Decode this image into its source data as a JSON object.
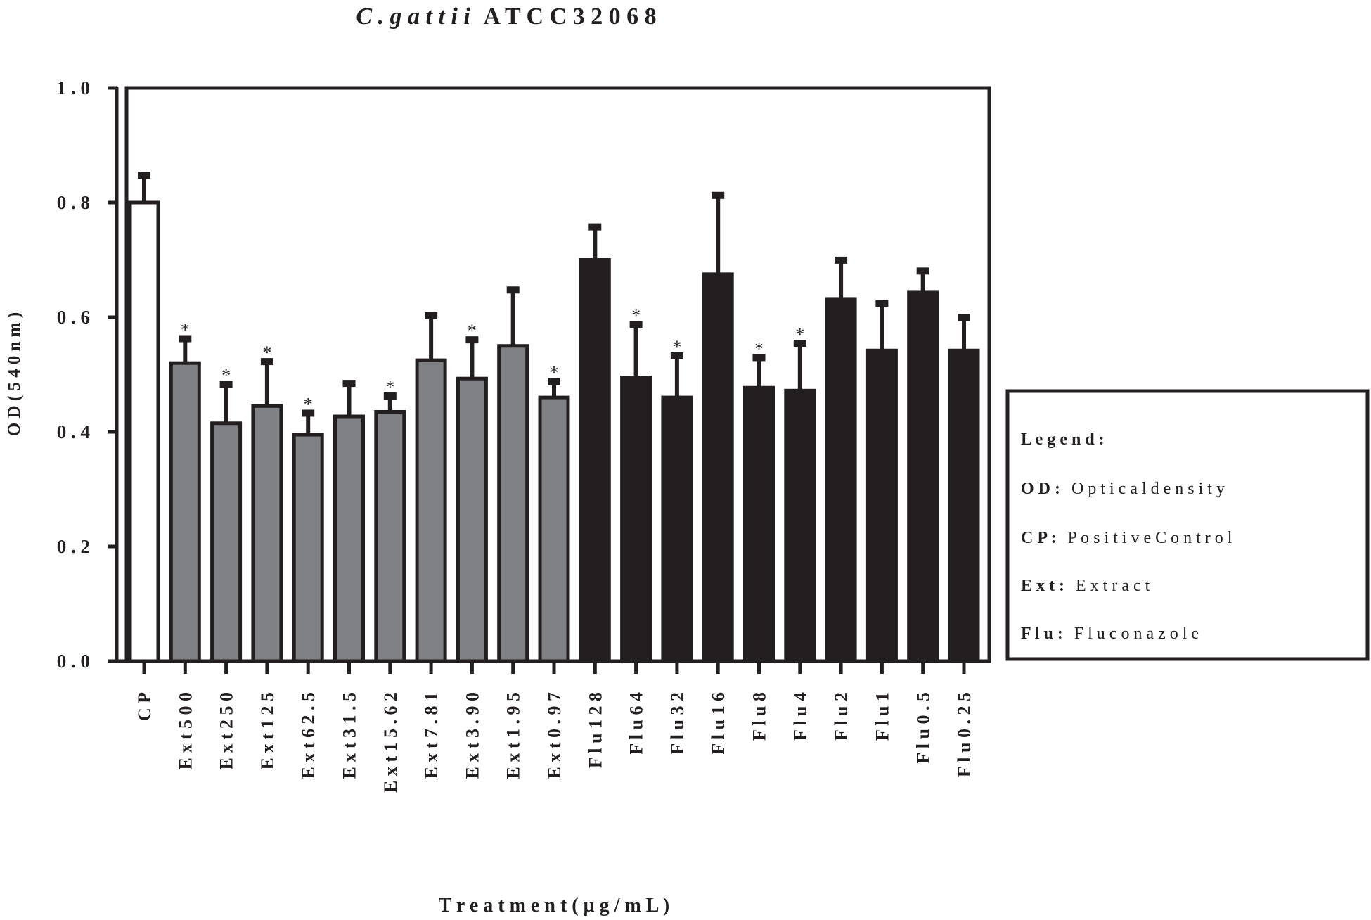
{
  "chart_data": {
    "type": "bar",
    "title_italic": "C . g a t t i i",
    "title_rest": "A T C C   3 2 0 6 8",
    "ylabel": "O D   ( 5 4 0   n m )",
    "xlabel": "T r e a t m  e n t  ( µ g / m  L )",
    "ylim": [
      0,
      1.0
    ],
    "yticks": [
      {
        "value": 0.0,
        "label": "0 . 0"
      },
      {
        "value": 0.2,
        "label": "0 . 2"
      },
      {
        "value": 0.4,
        "label": "0 . 4"
      },
      {
        "value": 0.6,
        "label": "0 . 6"
      },
      {
        "value": 0.8,
        "label": "0 . 8"
      },
      {
        "value": 1.0,
        "label": "1 . 0"
      }
    ],
    "categories": [
      "C P",
      "E x t  5 0 0",
      "E x t   2 5 0",
      "E x t  1 2 5",
      "E x t  6 2 . 5",
      "E x t   3 1 . 5",
      "E x t  1 5 . 6 2",
      "E x t   7 . 8 1",
      "E x t  3 . 9 0",
      "E x t  1 . 9 5",
      "E x t  0 . 9 7",
      "F l u  1 2 8",
      "F l u   6 4",
      "F l u   3 2",
      "F l u   1 6",
      "F l u   8",
      "F l u   4",
      "F l u   2",
      "F l u   1",
      "F l u  0 . 5",
      "F l u   0 . 2 5"
    ],
    "groups": [
      "control",
      "extract",
      "extract",
      "extract",
      "extract",
      "extract",
      "extract",
      "extract",
      "extract",
      "extract",
      "extract",
      "fluconazole",
      "fluconazole",
      "fluconazole",
      "fluconazole",
      "fluconazole",
      "fluconazole",
      "fluconazole",
      "fluconazole",
      "fluconazole",
      "fluconazole"
    ],
    "values": [
      0.8,
      0.52,
      0.415,
      0.445,
      0.395,
      0.427,
      0.435,
      0.525,
      0.493,
      0.55,
      0.46,
      0.7,
      0.495,
      0.46,
      0.675,
      0.477,
      0.472,
      0.632,
      0.542,
      0.643,
      0.542
    ],
    "errors": [
      0.05,
      0.045,
      0.07,
      0.08,
      0.04,
      0.06,
      0.03,
      0.08,
      0.07,
      0.1,
      0.03,
      0.06,
      0.095,
      0.075,
      0.14,
      0.055,
      0.085,
      0.07,
      0.085,
      0.04,
      0.06
    ],
    "significant": [
      false,
      true,
      true,
      true,
      true,
      false,
      true,
      false,
      true,
      false,
      true,
      false,
      true,
      true,
      false,
      true,
      true,
      false,
      false,
      false,
      false
    ],
    "significance_marker": "*",
    "colors": {
      "control": "#ffffff",
      "extract": "#808184",
      "fluconazole": "#231f20",
      "outline": "#231f20"
    },
    "legend": {
      "placement": "right",
      "title": "L e g e n d :",
      "entries": [
        {
          "key": "O D  :",
          "text": "O p t i c a l   d e n s i t y"
        },
        {
          "key": "C P  :",
          "text": "P o s i t i v e   C o n t r o l"
        },
        {
          "key": "E x t :",
          "text": "E x t r a c t"
        },
        {
          "key": "F l u  :",
          "text": "F l u c o n a z o l e"
        }
      ]
    }
  }
}
